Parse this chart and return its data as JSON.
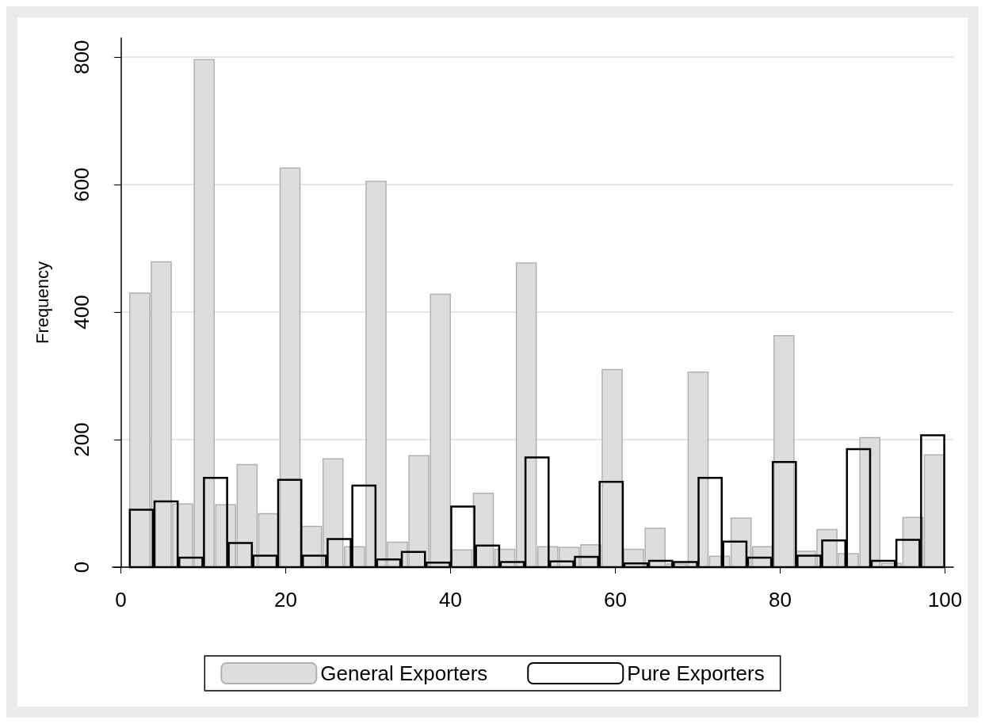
{
  "chart_data": {
    "type": "histogram",
    "ylabel": "Frequency",
    "xlim": [
      -1,
      101
    ],
    "xticks": [
      0,
      20,
      40,
      60,
      80,
      100
    ],
    "ylim": [
      0,
      830
    ],
    "yticks": [
      0,
      200,
      400,
      600,
      800
    ],
    "grid": "y",
    "legend": "bottom",
    "bins": [
      1,
      3.605,
      6.211,
      8.816,
      11.421,
      14.026,
      16.632,
      19.237,
      21.842,
      24.447,
      27.053,
      29.658,
      32.263,
      34.868,
      37.474,
      40.079,
      42.684,
      45.289,
      47.895,
      50.5,
      53.105,
      55.711,
      58.316,
      60.921,
      63.526,
      66.132,
      68.737,
      71.342,
      73.947,
      76.553,
      79.158,
      81.763,
      84.368,
      86.974,
      89.579,
      92.184,
      94.789,
      97.395,
      100
    ],
    "series": [
      {
        "name": "General Exporters",
        "color": "#dddddd",
        "values": [
          430,
          479,
          99,
          796,
          98,
          161,
          84,
          626,
          64,
          170,
          32,
          605,
          39,
          175,
          428,
          27,
          116,
          28,
          477,
          32,
          31,
          35,
          310,
          28,
          61,
          5,
          306,
          17,
          77,
          32,
          363,
          25,
          59,
          21,
          203,
          6,
          78,
          176
        ]
      },
      {
        "name": "Pure Exporters",
        "color": "#000000",
        "bins": [
          1,
          4,
          7,
          10,
          13,
          16,
          19,
          22,
          25,
          28,
          31,
          34,
          37,
          40,
          43,
          46,
          49,
          52,
          55,
          58,
          61,
          64,
          67,
          70,
          73,
          76,
          79,
          82,
          85,
          88,
          91,
          94,
          97,
          100
        ],
        "values": [
          90,
          103,
          15,
          140,
          38,
          18,
          137,
          18,
          44,
          128,
          12,
          24,
          7,
          95,
          34,
          8,
          172,
          9,
          16,
          134,
          6,
          10,
          8,
          140,
          40,
          15,
          165,
          18,
          42,
          185,
          10,
          43,
          207
        ]
      }
    ]
  }
}
